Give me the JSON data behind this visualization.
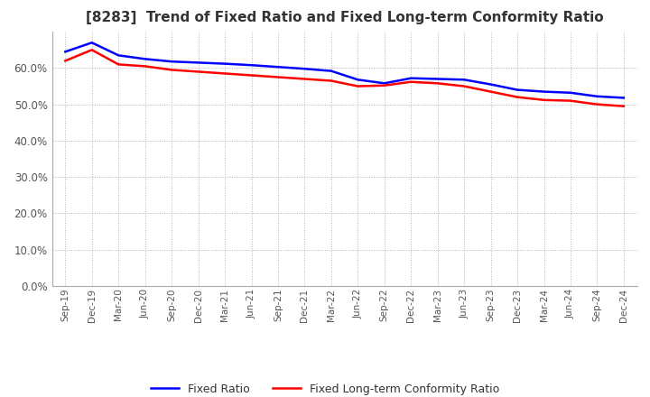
{
  "title": "[8283]  Trend of Fixed Ratio and Fixed Long-term Conformity Ratio",
  "title_fontsize": 11,
  "x_labels": [
    "Sep-19",
    "Dec-19",
    "Mar-20",
    "Jun-20",
    "Sep-20",
    "Dec-20",
    "Mar-21",
    "Jun-21",
    "Sep-21",
    "Dec-21",
    "Mar-22",
    "Jun-22",
    "Sep-22",
    "Dec-22",
    "Mar-23",
    "Jun-23",
    "Sep-23",
    "Dec-23",
    "Mar-24",
    "Jun-24",
    "Sep-24",
    "Dec-24"
  ],
  "fixed_ratio": [
    64.5,
    67.0,
    63.5,
    62.5,
    61.8,
    61.5,
    61.2,
    60.8,
    60.3,
    59.8,
    59.2,
    56.8,
    55.8,
    57.2,
    57.0,
    56.8,
    55.5,
    54.0,
    53.5,
    53.2,
    52.2,
    51.8
  ],
  "fixed_lt_ratio": [
    62.0,
    65.0,
    61.0,
    60.5,
    59.5,
    59.0,
    58.5,
    58.0,
    57.5,
    57.0,
    56.5,
    55.0,
    55.2,
    56.2,
    55.8,
    55.0,
    53.5,
    52.0,
    51.2,
    51.0,
    50.0,
    49.5
  ],
  "fixed_ratio_color": "#0000FF",
  "fixed_lt_ratio_color": "#FF0000",
  "ylim": [
    0,
    70
  ],
  "yticks": [
    0.0,
    10.0,
    20.0,
    30.0,
    40.0,
    50.0,
    60.0
  ],
  "grid_color": "#aaaaaa",
  "background_color": "#ffffff",
  "line_width": 1.8,
  "legend_fixed_ratio": "Fixed Ratio",
  "legend_fixed_lt_ratio": "Fixed Long-term Conformity Ratio"
}
